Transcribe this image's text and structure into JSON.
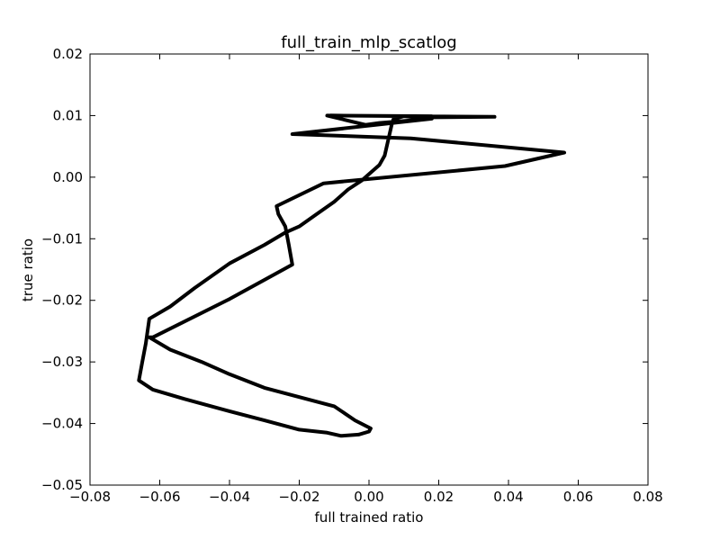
{
  "chart_data": {
    "type": "line",
    "title": "full_train_mlp_scatlog",
    "xlabel": "full trained ratio",
    "ylabel": "true ratio",
    "xlim": [
      -0.08,
      0.08
    ],
    "ylim": [
      -0.05,
      0.02
    ],
    "grid": false,
    "line_color": "#000000",
    "xticks": [
      {
        "value": -0.08,
        "label": "−0.08"
      },
      {
        "value": -0.06,
        "label": "−0.06"
      },
      {
        "value": -0.04,
        "label": "−0.04"
      },
      {
        "value": -0.02,
        "label": "−0.02"
      },
      {
        "value": 0.0,
        "label": "0.00"
      },
      {
        "value": 0.02,
        "label": "0.02"
      },
      {
        "value": 0.04,
        "label": "0.04"
      },
      {
        "value": 0.06,
        "label": "0.06"
      },
      {
        "value": 0.08,
        "label": "0.08"
      }
    ],
    "yticks": [
      {
        "value": -0.05,
        "label": "−0.05"
      },
      {
        "value": -0.04,
        "label": "−0.04"
      },
      {
        "value": -0.03,
        "label": "−0.03"
      },
      {
        "value": -0.02,
        "label": "−0.02"
      },
      {
        "value": -0.01,
        "label": "−0.01"
      },
      {
        "value": 0.0,
        "label": "0.00"
      },
      {
        "value": 0.01,
        "label": "0.01"
      },
      {
        "value": 0.02,
        "label": "0.02"
      }
    ],
    "series": [
      {
        "x": [
          -0.011,
          0.036,
          0.014,
          0.01,
          0.007,
          0.0065,
          0.0055,
          0.0045,
          0.003,
          0.001,
          -0.002,
          -0.006,
          -0.01,
          -0.015,
          -0.02,
          -0.024,
          -0.03,
          -0.04,
          -0.05,
          -0.057,
          -0.063,
          -0.064,
          -0.065,
          -0.066,
          -0.062,
          -0.053,
          -0.04,
          -0.03,
          -0.02,
          -0.012,
          -0.008,
          -0.003,
          0.0,
          0.0005,
          -0.004,
          -0.01,
          -0.03,
          -0.04,
          -0.048,
          -0.057,
          -0.063,
          -0.062,
          -0.04,
          -0.022,
          -0.023,
          -0.024,
          -0.026,
          -0.0265,
          -0.013,
          0.039,
          0.056,
          0.012,
          -0.022,
          0.018,
          0.003,
          -0.001,
          -0.012,
          0.018
        ],
        "y": [
          0.01,
          0.0098,
          0.0097,
          0.0099,
          0.0094,
          0.0085,
          0.006,
          0.0035,
          0.002,
          0.001,
          -0.0005,
          -0.002,
          -0.004,
          -0.006,
          -0.008,
          -0.009,
          -0.011,
          -0.014,
          -0.018,
          -0.021,
          -0.023,
          -0.027,
          -0.03,
          -0.033,
          -0.0345,
          -0.036,
          -0.038,
          -0.0395,
          -0.041,
          -0.0415,
          -0.042,
          -0.0418,
          -0.0413,
          -0.0408,
          -0.0395,
          -0.0372,
          -0.0342,
          -0.032,
          -0.03,
          -0.028,
          -0.026,
          -0.026,
          -0.0198,
          -0.0142,
          -0.011,
          -0.008,
          -0.006,
          -0.0047,
          -0.001,
          0.0018,
          0.004,
          0.0063,
          0.007,
          0.0095,
          0.0088,
          0.0085,
          0.01,
          0.0099
        ]
      }
    ]
  }
}
